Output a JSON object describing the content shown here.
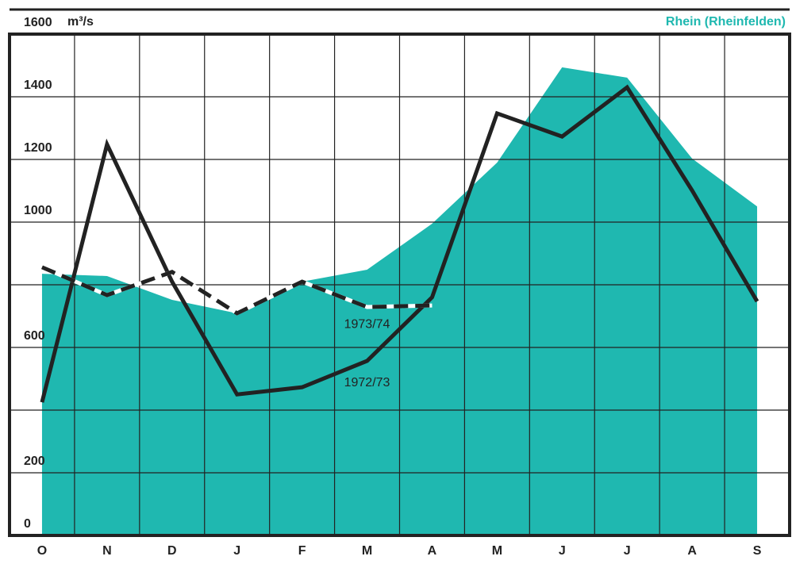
{
  "chart_data": {
    "type": "line",
    "title": "Rhein (Rheinfelden)",
    "y_label": "m³/s",
    "categories": [
      "O",
      "N",
      "D",
      "J",
      "F",
      "M",
      "A",
      "M",
      "J",
      "J",
      "A",
      "S"
    ],
    "series": [
      {
        "color": "#1fb8b0",
        "fill": true,
        "values": [
          835,
          828,
          752,
          709,
          810,
          848,
          995,
          1190,
          1494,
          1461,
          1203,
          1050
        ]
      },
      {
        "name": "1972/73",
        "color": "#222222",
        "dash": false,
        "values": [
          425,
          1248,
          810,
          450,
          473,
          557,
          760,
          1347,
          1273,
          1430,
          1101,
          747
        ]
      },
      {
        "name": "1973/74",
        "color": "#222222",
        "dash": true,
        "values": [
          856,
          767,
          841,
          709,
          810,
          729,
          734,
          null,
          null,
          null,
          null,
          null
        ]
      }
    ],
    "ylim": [
      0,
      1600
    ],
    "yticks": [
      0,
      200,
      {
        "value": 400,
        "label": null
      },
      600,
      {
        "value": 800,
        "label": null
      },
      1000,
      1200,
      1400,
      1600
    ],
    "grid": true
  }
}
